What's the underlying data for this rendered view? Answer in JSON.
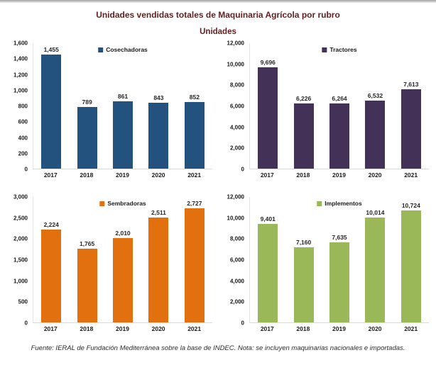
{
  "page": {
    "title": "Unidades vendidas totales de Maquinaria Agrícola por rubro",
    "subtitle": "Unidades",
    "footer": "Fuente: IERAL de Fundación Mediterránea sobre la base de INDEC. Nota: se incluyen maquinarias nacionales e importadas."
  },
  "colors": {
    "title_text": "#641e1e",
    "axis_line": "#d9d9d9",
    "label_text": "#1a1a1a",
    "cosechadoras": "#24527E",
    "tractores": "#433158",
    "sembradoras": "#E2700F",
    "implementos": "#9BB858"
  },
  "chart_data": [
    {
      "type": "bar",
      "title": "Cosechadoras",
      "legend": "Cosechadoras",
      "legend_position": "top-center",
      "color": "#24527E",
      "categories": [
        "2017",
        "2018",
        "2019",
        "2020",
        "2021"
      ],
      "values": [
        1455,
        789,
        861,
        843,
        852
      ],
      "value_labels": [
        "1,455",
        "789",
        "861",
        "843",
        "852"
      ],
      "xlabel": "",
      "ylabel": "",
      "ylim": [
        0,
        1600
      ],
      "yticks": [
        0,
        200,
        400,
        600,
        800,
        1000,
        1200,
        1400,
        1600
      ],
      "ytick_labels": [
        "0",
        "200",
        "400",
        "600",
        "800",
        "1,000",
        "1,200",
        "1,400",
        "1,600"
      ],
      "grid": false
    },
    {
      "type": "bar",
      "title": "Tractores",
      "legend": "Tractores",
      "legend_position": "top-center",
      "color": "#433158",
      "categories": [
        "2017",
        "2018",
        "2019",
        "2020",
        "2021"
      ],
      "values": [
        9696,
        6226,
        6264,
        6532,
        7613
      ],
      "value_labels": [
        "9,696",
        "6,226",
        "6,264",
        "6,532",
        "7,613"
      ],
      "xlabel": "",
      "ylabel": "",
      "ylim": [
        0,
        12000
      ],
      "yticks": [
        0,
        2000,
        4000,
        6000,
        8000,
        10000,
        12000
      ],
      "ytick_labels": [
        "0",
        "2,000",
        "4,000",
        "6,000",
        "8,000",
        "10,000",
        "12,000"
      ],
      "grid": false
    },
    {
      "type": "bar",
      "title": "Sembradoras",
      "legend": "Sembradoras",
      "legend_position": "top-center",
      "color": "#E2700F",
      "categories": [
        "2017",
        "2018",
        "2019",
        "2020",
        "2021"
      ],
      "values": [
        2224,
        1765,
        2010,
        2511,
        2727
      ],
      "value_labels": [
        "2,224",
        "1,765",
        "2,010",
        "2,511",
        "2,727"
      ],
      "xlabel": "",
      "ylabel": "",
      "ylim": [
        0,
        3000
      ],
      "yticks": [
        0,
        500,
        1000,
        1500,
        2000,
        2500,
        3000
      ],
      "ytick_labels": [
        "0",
        "500",
        "1,000",
        "1,500",
        "2,000",
        "2,500",
        "3,000"
      ],
      "grid": false
    },
    {
      "type": "bar",
      "title": "Implementos",
      "legend": "Implementos",
      "legend_position": "top-center",
      "color": "#9BB858",
      "categories": [
        "2017",
        "2018",
        "2019",
        "2020",
        "2021"
      ],
      "values": [
        9401,
        7160,
        7635,
        10014,
        10724
      ],
      "value_labels": [
        "9,401",
        "7,160",
        "7,635",
        "10,014",
        "10,724"
      ],
      "xlabel": "",
      "ylabel": "",
      "ylim": [
        0,
        12000
      ],
      "yticks": [
        0,
        2000,
        4000,
        6000,
        8000,
        10000,
        12000
      ],
      "ytick_labels": [
        "0",
        "2,000",
        "4,000",
        "6,000",
        "8,000",
        "10,000",
        "12,000"
      ],
      "grid": false
    }
  ]
}
